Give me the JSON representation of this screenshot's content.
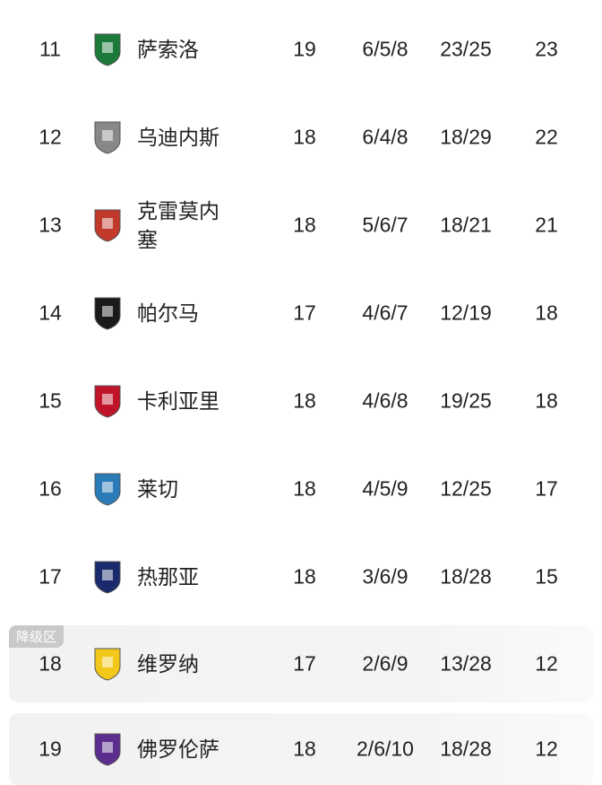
{
  "zone_badge": "降级区",
  "rows": [
    {
      "rank": "11",
      "name": "萨索洛",
      "played": "19",
      "wdl": "6/5/8",
      "goals": "23/25",
      "points": "23",
      "logo": "sassuolo-crest-icon",
      "color": "#1b7a3a"
    },
    {
      "rank": "12",
      "name": "乌迪内斯",
      "played": "18",
      "wdl": "6/4/8",
      "goals": "18/29",
      "points": "22",
      "logo": "udinese-crest-icon",
      "color": "#888888"
    },
    {
      "rank": "13",
      "name": "克雷莫内塞",
      "played": "18",
      "wdl": "5/6/7",
      "goals": "18/21",
      "points": "21",
      "logo": "cremonese-crest-icon",
      "color": "#c0392b"
    },
    {
      "rank": "14",
      "name": "帕尔马",
      "played": "17",
      "wdl": "4/6/7",
      "goals": "12/19",
      "points": "18",
      "logo": "parma-crest-icon",
      "color": "#1a1a1a"
    },
    {
      "rank": "15",
      "name": "卡利亚里",
      "played": "18",
      "wdl": "4/6/8",
      "goals": "19/25",
      "points": "18",
      "logo": "cagliari-crest-icon",
      "color": "#c0142b"
    },
    {
      "rank": "16",
      "name": "莱切",
      "played": "18",
      "wdl": "4/5/9",
      "goals": "12/25",
      "points": "17",
      "logo": "lecce-crest-icon",
      "color": "#2a7bb8"
    },
    {
      "rank": "17",
      "name": "热那亚",
      "played": "18",
      "wdl": "3/6/9",
      "goals": "18/28",
      "points": "15",
      "logo": "genoa-crest-icon",
      "color": "#1a2a6c"
    },
    {
      "rank": "18",
      "name": "维罗纳",
      "played": "17",
      "wdl": "2/6/9",
      "goals": "13/28",
      "points": "12",
      "logo": "verona-crest-icon",
      "color": "#f2c81a"
    },
    {
      "rank": "19",
      "name": "佛罗伦萨",
      "played": "18",
      "wdl": "2/6/10",
      "goals": "18/28",
      "points": "12",
      "logo": "fiorentina-crest-icon",
      "color": "#5b2d8e"
    }
  ]
}
